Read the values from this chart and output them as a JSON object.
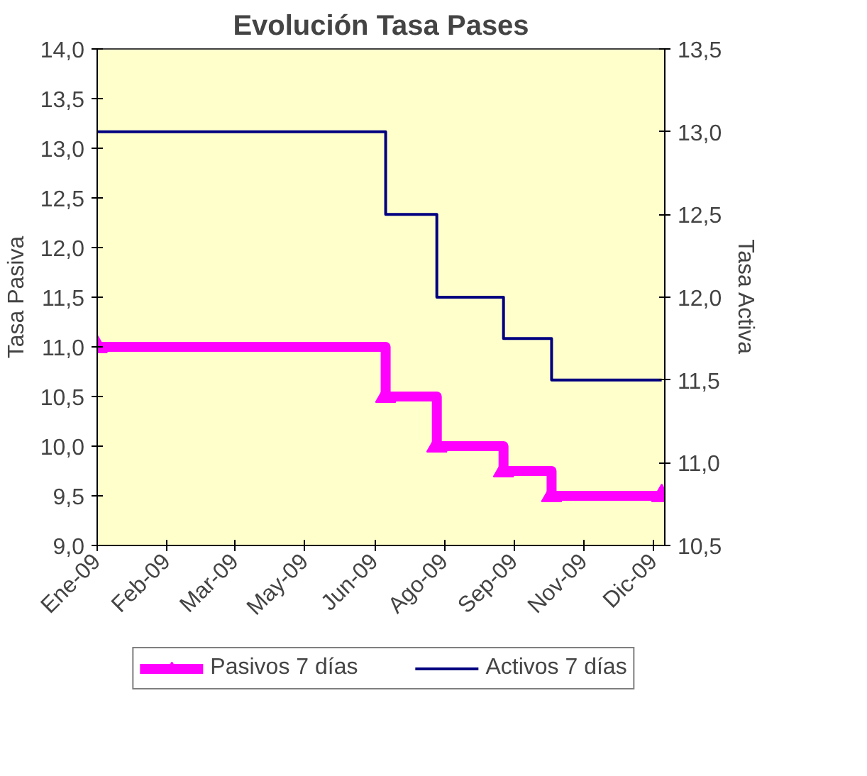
{
  "chart_data": {
    "type": "step",
    "title": "Evolución Tasa Pases",
    "ylabel": "Tasa Pasiva",
    "y2label": "Tasa Activa",
    "xlim": [
      "2009-01-01",
      "2010-01-02"
    ],
    "xticks": [
      {
        "value": "2009-01-01",
        "label": "Ene-09"
      },
      {
        "value": "2009-02-15",
        "label": "Feb-09"
      },
      {
        "value": "2009-03-31",
        "label": "Mar-09"
      },
      {
        "value": "2009-05-15",
        "label": "May-09"
      },
      {
        "value": "2009-06-29",
        "label": "Jun-09"
      },
      {
        "value": "2009-08-13",
        "label": "Ago-09"
      },
      {
        "value": "2009-09-27",
        "label": "Sep-09"
      },
      {
        "value": "2009-11-11",
        "label": "Nov-09"
      },
      {
        "value": "2009-12-26",
        "label": "Dic-09"
      }
    ],
    "ylim": [
      9,
      14
    ],
    "yticks": [
      {
        "value": 9,
        "label": "9,0"
      },
      {
        "value": 9.5,
        "label": "9,5"
      },
      {
        "value": 10,
        "label": "10,0"
      },
      {
        "value": 10.5,
        "label": "10,5"
      },
      {
        "value": 11,
        "label": "11,0"
      },
      {
        "value": 11.5,
        "label": "11,5"
      },
      {
        "value": 12,
        "label": "12,0"
      },
      {
        "value": 12.5,
        "label": "12,5"
      },
      {
        "value": 13,
        "label": "13,0"
      },
      {
        "value": 13.5,
        "label": "13,5"
      },
      {
        "value": 14,
        "label": "14,0"
      }
    ],
    "y2lim": [
      10.5,
      13.5
    ],
    "y2ticks": [
      {
        "value": 10.5,
        "label": "10,5"
      },
      {
        "value": 11,
        "label": "11,0"
      },
      {
        "value": 11.5,
        "label": "11,5"
      },
      {
        "value": 12,
        "label": "12,0"
      },
      {
        "value": 12.5,
        "label": "12,5"
      },
      {
        "value": 13,
        "label": "13,0"
      },
      {
        "value": 13.5,
        "label": "13,5"
      }
    ],
    "grid": false,
    "legend": "bottom",
    "series": [
      {
        "name": "Pasivos 7 días",
        "color": "#ff00ff",
        "marker": "triangle",
        "x": [
          "2009-01-01",
          "2009-07-06",
          "2009-08-08",
          "2009-09-20",
          "2009-10-21",
          "2009-12-31"
        ],
        "values": [
          11,
          10.5,
          10,
          9.75,
          9.5,
          9.5
        ]
      },
      {
        "name": "Activos 7 días",
        "color": "#000080",
        "marker": "none",
        "axis": "y2",
        "x": [
          "2009-01-01",
          "2009-07-06",
          "2009-08-08",
          "2009-09-20",
          "2009-10-21",
          "2009-12-31"
        ],
        "values": [
          13,
          12.5,
          12,
          11.75,
          11.5,
          11.5
        ]
      }
    ]
  }
}
